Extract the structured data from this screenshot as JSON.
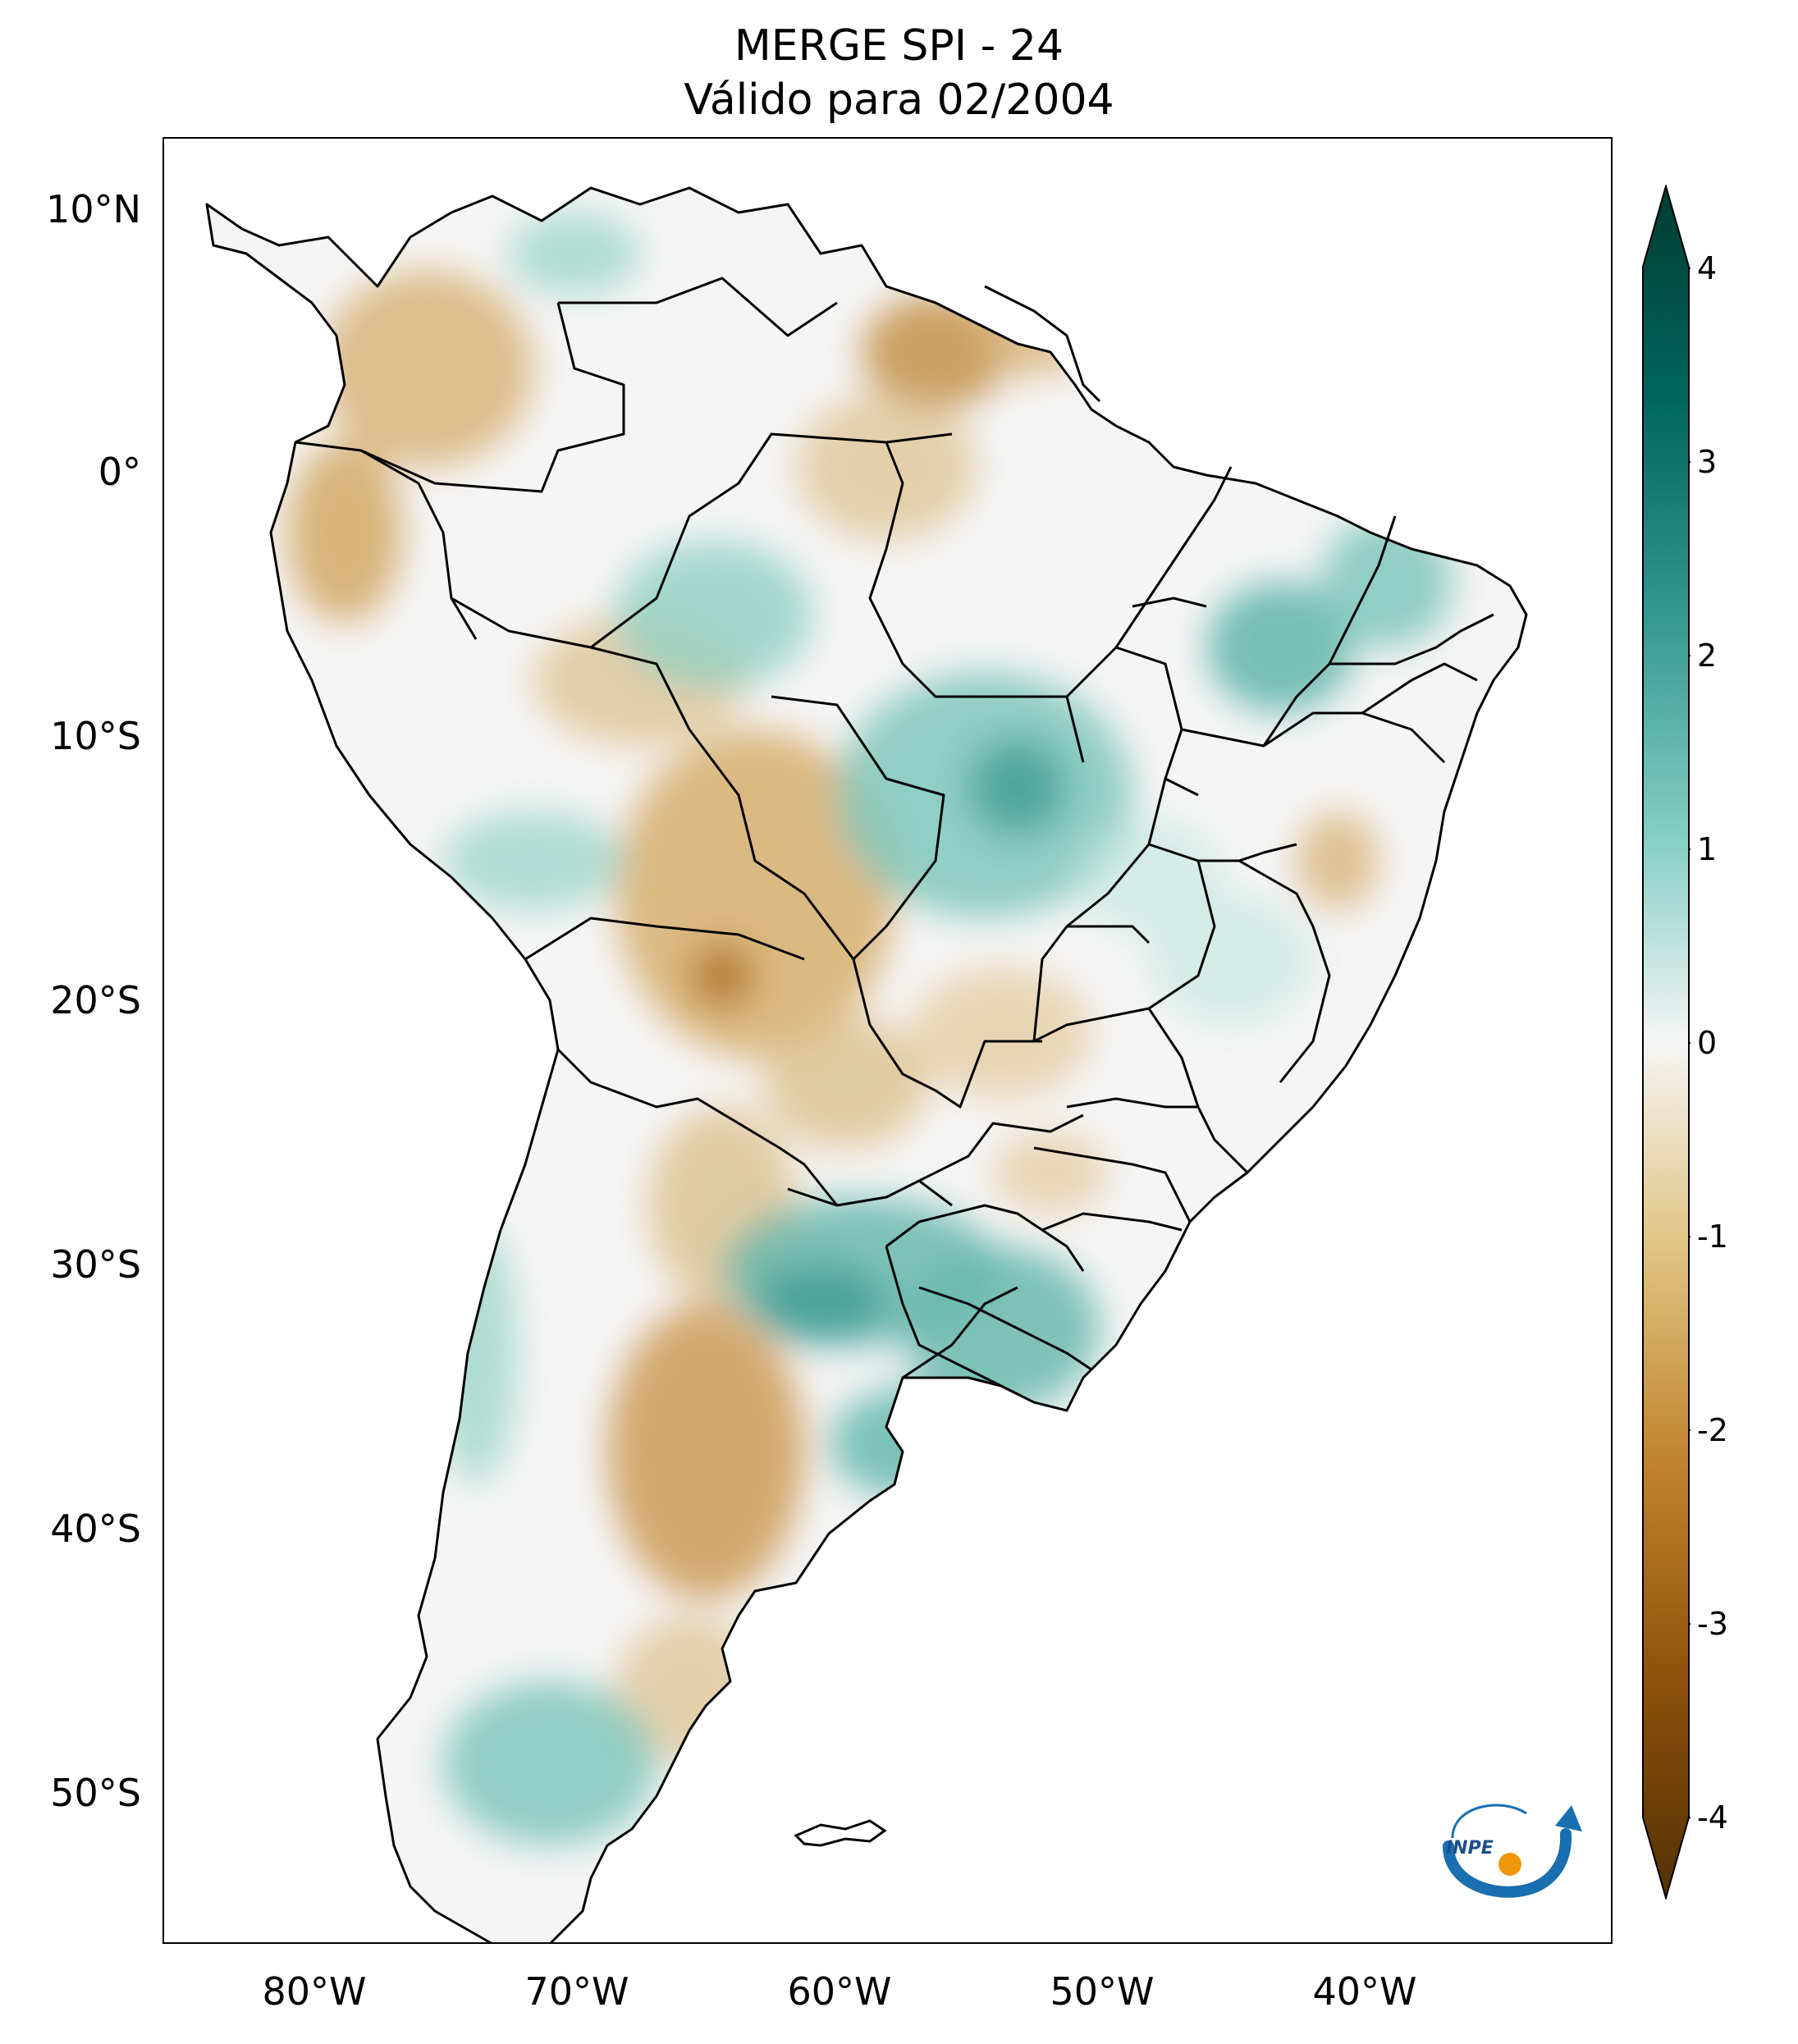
{
  "title": {
    "line1": "MERGE   SPI - 24",
    "line2": "Válido para 02/2004"
  },
  "map": {
    "lat_labels": [
      "10°N",
      "0°",
      "10°S",
      "20°S",
      "30°S",
      "40°S",
      "50°S"
    ],
    "lon_labels": [
      "80°W",
      "70°W",
      "60°W",
      "50°W",
      "40°W"
    ]
  },
  "colorbar": {
    "ticks": [
      "4",
      "3",
      "2",
      "1",
      "0",
      "-1",
      "-2",
      "-3",
      "-4"
    ],
    "colors": {
      "max": "#003c30",
      "high": "#01665e",
      "mid_high": "#35978f",
      "low_high": "#80cdc1",
      "zero": "#f5f5f5",
      "low_neg": "#dfc27d",
      "mid_neg": "#bf812d",
      "high_neg": "#8c510a",
      "min": "#543005"
    }
  },
  "logo": {
    "text": "INPE"
  }
}
